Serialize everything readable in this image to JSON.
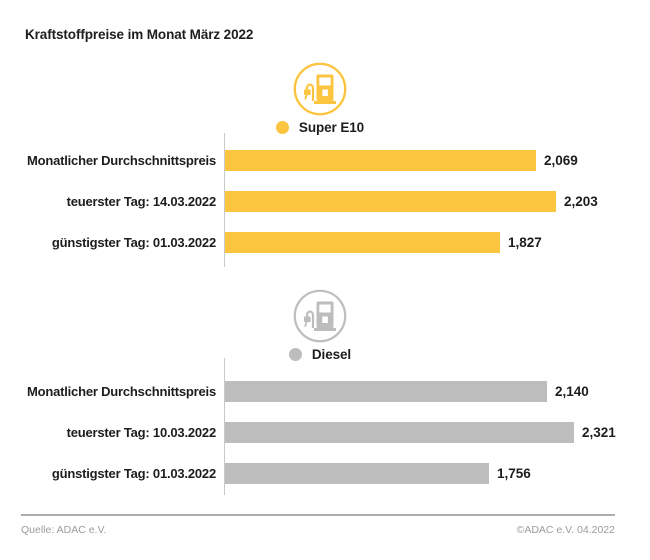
{
  "title": "Kraftstoffpreise im Monat März 2022",
  "colors": {
    "super_e10": "#FBC540",
    "diesel": "#BDBDBD",
    "text": "#1D1D1B",
    "axis_line": "#C9C9C9",
    "footer_text": "#9B9B9B",
    "footer_line": "#ADADAD"
  },
  "icons": {
    "super_e10": "fuel-pump-icon",
    "diesel": "fuel-pump-icon"
  },
  "footer": {
    "source": "Quelle: ADAC e.V.",
    "copyright": "©ADAC e.V. 04.2022"
  },
  "chart_data": [
    {
      "type": "bar",
      "orientation": "horizontal",
      "series_name": "Super E10",
      "categories": [
        "Monatlicher Durchschnittspreis",
        "teuerster Tag: 14.03.2022",
        "günstigster Tag: 01.03.2022"
      ],
      "values": [
        2.069,
        2.203,
        1.827
      ],
      "value_labels": [
        "2,069",
        "2,203",
        "1,827"
      ],
      "color": "#FBC540",
      "xlim": [
        0,
        2.321
      ],
      "grid": false,
      "legend_position": "top-center"
    },
    {
      "type": "bar",
      "orientation": "horizontal",
      "series_name": "Diesel",
      "categories": [
        "Monatlicher Durchschnittspreis",
        "teuerster Tag: 10.03.2022",
        "günstigster Tag: 01.03.2022"
      ],
      "values": [
        2.14,
        2.321,
        1.756
      ],
      "value_labels": [
        "2,140",
        "2,321",
        "1,756"
      ],
      "color": "#BDBDBD",
      "xlim": [
        0,
        2.321
      ],
      "grid": false,
      "legend_position": "top-center"
    }
  ]
}
